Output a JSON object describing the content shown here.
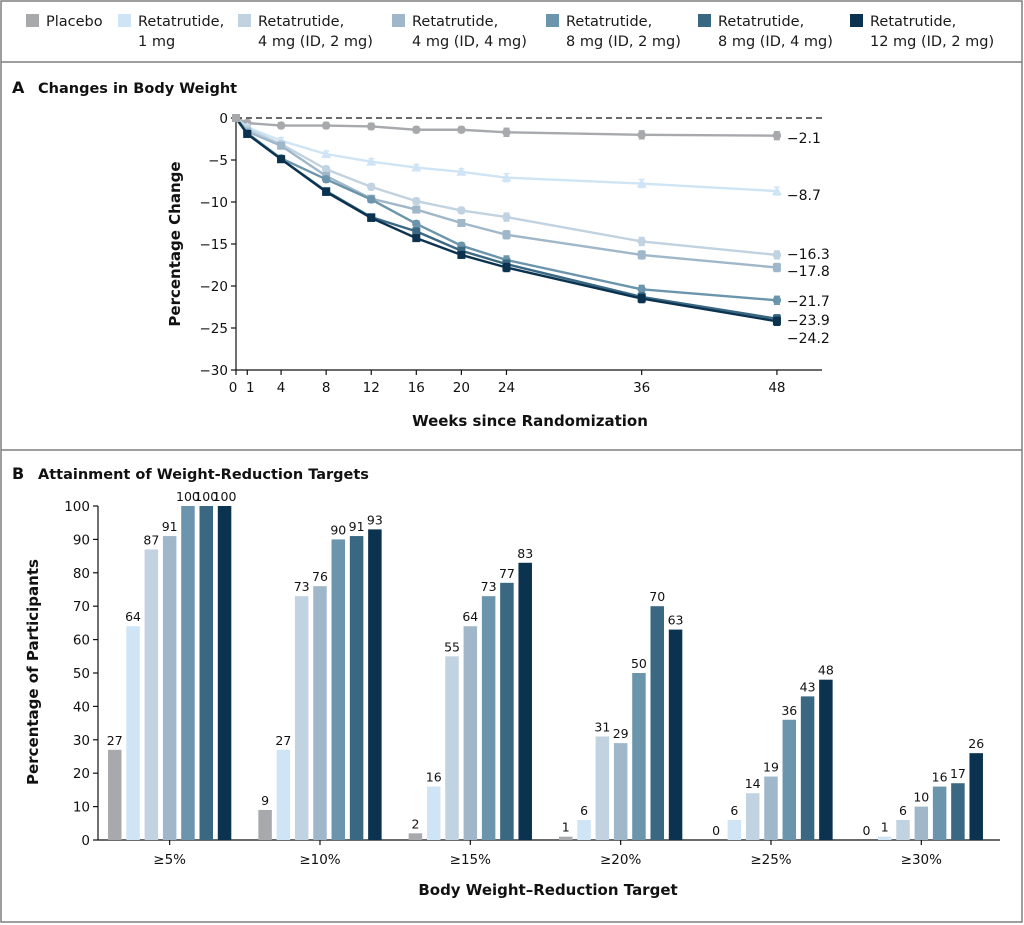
{
  "colors": {
    "placebo": "#a7a9ac",
    "r1": "#cfe4f4",
    "r4_2": "#c1d2e0",
    "r4_4": "#9fb7c9",
    "r8_2": "#6b95ac",
    "r8_4": "#3a6882",
    "r12_2": "#0b3350",
    "frame": "#7f7f7f"
  },
  "legend": [
    {
      "key": "placebo",
      "line1": "Placebo",
      "line2": ""
    },
    {
      "key": "r1",
      "line1": "Retatrutide,",
      "line2": "1 mg"
    },
    {
      "key": "r4_2",
      "line1": "Retatrutide,",
      "line2": "4 mg (ID, 2 mg)"
    },
    {
      "key": "r4_4",
      "line1": "Retatrutide,",
      "line2": "4 mg (ID, 4 mg)"
    },
    {
      "key": "r8_2",
      "line1": "Retatrutide,",
      "line2": "8 mg (ID, 2 mg)"
    },
    {
      "key": "r8_4",
      "line1": "Retatrutide,",
      "line2": "8 mg (ID, 4 mg)"
    },
    {
      "key": "r12_2",
      "line1": "Retatrutide,",
      "line2": "12 mg (ID, 2 mg)"
    }
  ],
  "chart_data": [
    {
      "type": "line",
      "panel": "A",
      "title": "Changes in Body Weight",
      "xlabel": "Weeks since Randomization",
      "ylabel": "Percentage Change",
      "x": [
        0,
        1,
        4,
        8,
        12,
        16,
        20,
        24,
        36,
        48
      ],
      "x_ticks": [
        "0",
        "1",
        "4",
        "8",
        "12",
        "16",
        "20",
        "24",
        "36",
        "48"
      ],
      "y_ticks": [
        "0",
        "−5",
        "−10",
        "−15",
        "−20",
        "−25",
        "−30"
      ],
      "ylim": [
        -30,
        0
      ],
      "xlim": [
        0,
        52
      ],
      "reference_line": 0,
      "error_bars": true,
      "series": [
        {
          "key": "placebo",
          "marker": "circle",
          "values": [
            0,
            -0.6,
            -0.9,
            -0.9,
            -1.0,
            -1.4,
            -1.4,
            -1.7,
            -2.0,
            -2.1
          ],
          "end_label": "−2.1"
        },
        {
          "key": "r1",
          "marker": "triangle",
          "values": [
            0,
            -1.1,
            -2.7,
            -4.3,
            -5.2,
            -5.9,
            -6.4,
            -7.1,
            -7.8,
            -8.7
          ],
          "end_label": "−8.7"
        },
        {
          "key": "r4_2",
          "marker": "circle",
          "values": [
            0,
            -1.3,
            -3.1,
            -6.1,
            -8.2,
            -9.9,
            -11.0,
            -11.8,
            -14.7,
            -16.3
          ],
          "end_label": "−16.3"
        },
        {
          "key": "r4_4",
          "marker": "square",
          "values": [
            0,
            -1.6,
            -3.3,
            -6.9,
            -9.6,
            -10.9,
            -12.5,
            -13.9,
            -16.3,
            -17.8
          ],
          "end_label": "−17.8"
        },
        {
          "key": "r8_2",
          "marker": "circle",
          "values": [
            0,
            -1.8,
            -4.8,
            -7.3,
            -9.7,
            -12.6,
            -15.2,
            -16.9,
            -20.4,
            -21.7
          ],
          "end_label": "−21.7"
        },
        {
          "key": "r8_4",
          "marker": "square",
          "values": [
            0,
            -1.9,
            -4.9,
            -8.7,
            -11.8,
            -13.5,
            -15.8,
            -17.4,
            -21.3,
            -23.9
          ],
          "end_label": "−23.9"
        },
        {
          "key": "r12_2",
          "marker": "square",
          "values": [
            0,
            -1.9,
            -4.9,
            -8.8,
            -11.9,
            -14.3,
            -16.3,
            -17.8,
            -21.5,
            -24.2
          ],
          "end_label": "−24.2"
        }
      ]
    },
    {
      "type": "bar",
      "panel": "B",
      "title": "Attainment of Weight-Reduction Targets",
      "xlabel": "Body Weight–Reduction Target",
      "ylabel": "Percentage of Participants",
      "categories": [
        "≥5%",
        "≥10%",
        "≥15%",
        "≥20%",
        "≥25%",
        "≥30%"
      ],
      "y_ticks": [
        "0",
        "10",
        "20",
        "30",
        "40",
        "50",
        "60",
        "70",
        "80",
        "90",
        "100"
      ],
      "ylim": [
        0,
        100
      ],
      "series": [
        {
          "key": "placebo",
          "values": [
            27,
            9,
            2,
            1,
            0,
            0
          ]
        },
        {
          "key": "r1",
          "values": [
            64,
            27,
            16,
            6,
            6,
            1
          ]
        },
        {
          "key": "r4_2",
          "values": [
            87,
            73,
            55,
            31,
            14,
            6
          ]
        },
        {
          "key": "r4_4",
          "values": [
            91,
            76,
            64,
            29,
            19,
            10
          ]
        },
        {
          "key": "r8_2",
          "values": [
            100,
            90,
            73,
            50,
            36,
            16
          ]
        },
        {
          "key": "r8_4",
          "values": [
            100,
            91,
            77,
            70,
            43,
            17
          ]
        },
        {
          "key": "r12_2",
          "values": [
            100,
            93,
            83,
            63,
            48,
            26
          ]
        }
      ]
    }
  ]
}
